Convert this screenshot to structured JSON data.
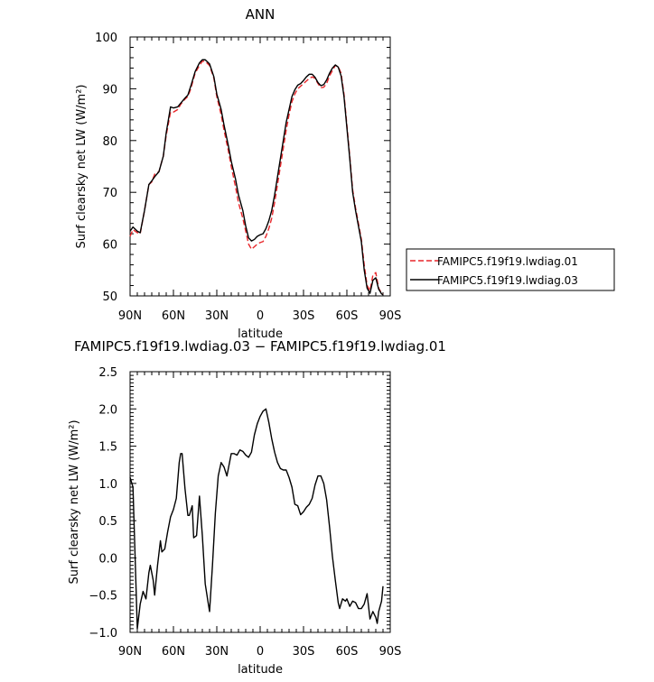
{
  "chart_data": [
    {
      "type": "line",
      "title": "ANN",
      "xlabel": "latitude",
      "ylabel": "Surf clearsky net LW (W/m²)",
      "xlim": [
        -90,
        90
      ],
      "ylim": [
        50,
        100
      ],
      "x_ticks": [
        -90,
        -60,
        -30,
        0,
        30,
        60,
        90
      ],
      "x_tick_labels": [
        "90N",
        "60N",
        "30N",
        "0",
        "30S",
        "60S",
        "90S"
      ],
      "y_ticks": [
        50,
        60,
        70,
        80,
        90,
        100
      ],
      "y_tick_labels": [
        "50",
        "60",
        "70",
        "80",
        "90",
        "100"
      ],
      "legend_position": "right",
      "series": [
        {
          "name": "FAMIPC5.f19f19.lwdiag.01",
          "color": "#e8262a",
          "dash": "dashed",
          "points": [
            [
              -90,
              61.5
            ],
            [
              -88,
              62.8
            ],
            [
              -85,
              62.2
            ],
            [
              -83,
              62
            ],
            [
              -80,
              66.5
            ],
            [
              -77,
              71.5
            ],
            [
              -75,
              72
            ],
            [
              -73,
              73.5
            ],
            [
              -70,
              74
            ],
            [
              -67,
              77
            ],
            [
              -65,
              81
            ],
            [
              -62,
              85.5
            ],
            [
              -60,
              85.5
            ],
            [
              -57,
              86
            ],
            [
              -55,
              87
            ],
            [
              -52,
              88
            ],
            [
              -50,
              88.5
            ],
            [
              -48,
              90
            ],
            [
              -45,
              93
            ],
            [
              -42,
              94.5
            ],
            [
              -40,
              95.3
            ],
            [
              -38,
              95.3
            ],
            [
              -35,
              94.5
            ],
            [
              -32,
              92
            ],
            [
              -30,
              88.5
            ],
            [
              -27,
              85
            ],
            [
              -25,
              82
            ],
            [
              -22,
              78
            ],
            [
              -20,
              75
            ],
            [
              -17,
              71
            ],
            [
              -15,
              68
            ],
            [
              -12,
              65
            ],
            [
              -10,
              62.5
            ],
            [
              -8,
              60
            ],
            [
              -6,
              59
            ],
            [
              -4,
              59.5
            ],
            [
              -2,
              60
            ],
            [
              0,
              60.3
            ],
            [
              2,
              60.5
            ],
            [
              4,
              61.5
            ],
            [
              6,
              63
            ],
            [
              8,
              65
            ],
            [
              10,
              68
            ],
            [
              12,
              71.5
            ],
            [
              14,
              75
            ],
            [
              16,
              78.5
            ],
            [
              18,
              82
            ],
            [
              20,
              85
            ],
            [
              22,
              87.5
            ],
            [
              24,
              89
            ],
            [
              26,
              90
            ],
            [
              28,
              90.5
            ],
            [
              30,
              91
            ],
            [
              32,
              91.5
            ],
            [
              34,
              92
            ],
            [
              36,
              92.3
            ],
            [
              38,
              92
            ],
            [
              40,
              91
            ],
            [
              42,
              90.2
            ],
            [
              44,
              90.3
            ],
            [
              46,
              91
            ],
            [
              48,
              92.5
            ],
            [
              50,
              93.5
            ],
            [
              52,
              94.5
            ],
            [
              54,
              94.3
            ],
            [
              56,
              93
            ],
            [
              58,
              89
            ],
            [
              60,
              83
            ],
            [
              62,
              77
            ],
            [
              64,
              70.5
            ],
            [
              66,
              67
            ],
            [
              68,
              64
            ],
            [
              70,
              61
            ],
            [
              72,
              56
            ],
            [
              74,
              52
            ],
            [
              76,
              51
            ],
            [
              78,
              54
            ],
            [
              80,
              54.5
            ],
            [
              82,
              51.5
            ],
            [
              84,
              50.5
            ],
            [
              85,
              50.3
            ]
          ]
        },
        {
          "name": "FAMIPC5.f19f19.lwdiag.03",
          "color": "#000000",
          "dash": "solid",
          "points": [
            [
              -90,
              62.5
            ],
            [
              -88,
              63.3
            ],
            [
              -85,
              62.5
            ],
            [
              -83,
              62.2
            ],
            [
              -80,
              66.5
            ],
            [
              -77,
              71.5
            ],
            [
              -75,
              72.2
            ],
            [
              -73,
              73
            ],
            [
              -70,
              74
            ],
            [
              -67,
              77
            ],
            [
              -65,
              81.5
            ],
            [
              -62,
              86.5
            ],
            [
              -60,
              86.3
            ],
            [
              -57,
              86.5
            ],
            [
              -55,
              87.2
            ],
            [
              -52,
              88.2
            ],
            [
              -50,
              88.8
            ],
            [
              -48,
              90.5
            ],
            [
              -45,
              93.3
            ],
            [
              -42,
              95
            ],
            [
              -40,
              95.6
            ],
            [
              -38,
              95.6
            ],
            [
              -35,
              94.8
            ],
            [
              -32,
              92.3
            ],
            [
              -30,
              89
            ],
            [
              -27,
              86
            ],
            [
              -25,
              83
            ],
            [
              -22,
              79
            ],
            [
              -20,
              76
            ],
            [
              -17,
              72.5
            ],
            [
              -15,
              69.5
            ],
            [
              -12,
              66.5
            ],
            [
              -10,
              63.5
            ],
            [
              -8,
              61.2
            ],
            [
              -6,
              60.6
            ],
            [
              -4,
              60.9
            ],
            [
              -2,
              61.5
            ],
            [
              0,
              61.8
            ],
            [
              2,
              62
            ],
            [
              4,
              63
            ],
            [
              6,
              64.5
            ],
            [
              8,
              66.5
            ],
            [
              10,
              69.5
            ],
            [
              12,
              73
            ],
            [
              14,
              76.5
            ],
            [
              16,
              80
            ],
            [
              18,
              83.5
            ],
            [
              20,
              86
            ],
            [
              22,
              88.5
            ],
            [
              24,
              89.8
            ],
            [
              26,
              90.7
            ],
            [
              28,
              91
            ],
            [
              30,
              91.6
            ],
            [
              32,
              92.3
            ],
            [
              34,
              92.8
            ],
            [
              36,
              92.8
            ],
            [
              38,
              92.2
            ],
            [
              40,
              91.2
            ],
            [
              42,
              90.6
            ],
            [
              44,
              90.8
            ],
            [
              46,
              91.7
            ],
            [
              48,
              93
            ],
            [
              50,
              94
            ],
            [
              52,
              94.6
            ],
            [
              54,
              94.2
            ],
            [
              56,
              92.5
            ],
            [
              58,
              88.5
            ],
            [
              60,
              82.5
            ],
            [
              62,
              76.5
            ],
            [
              64,
              70
            ],
            [
              66,
              66.5
            ],
            [
              68,
              63.5
            ],
            [
              70,
              60.5
            ],
            [
              72,
              55
            ],
            [
              74,
              51.5
            ],
            [
              76,
              50.5
            ],
            [
              78,
              53
            ],
            [
              80,
              53.5
            ],
            [
              82,
              51.3
            ],
            [
              84,
              50.4
            ],
            [
              85,
              50.2
            ]
          ]
        }
      ]
    },
    {
      "type": "line",
      "title": "FAMIPC5.f19f19.lwdiag.03 − FAMIPC5.f19f19.lwdiag.01",
      "xlabel": "latitude",
      "ylabel": "Surf clearsky net LW (W/m²)",
      "xlim": [
        -90,
        90
      ],
      "ylim": [
        -1.0,
        2.5
      ],
      "x_ticks": [
        -90,
        -60,
        -30,
        0,
        30,
        60,
        90
      ],
      "x_tick_labels": [
        "90N",
        "60N",
        "30N",
        "0",
        "30S",
        "60S",
        "90S"
      ],
      "y_ticks": [
        -1.0,
        -0.5,
        0.0,
        0.5,
        1.0,
        1.5,
        2.0,
        2.5
      ],
      "y_tick_labels": [
        "−1.0",
        "−0.5",
        "0.0",
        "0.5",
        "1.0",
        "1.5",
        "2.0",
        "2.5"
      ],
      "series": [
        {
          "color": "#000000",
          "dash": "solid",
          "points": [
            [
              -90,
              1.08
            ],
            [
              -88,
              0.95
            ],
            [
              -85,
              -0.95
            ],
            [
              -83,
              -0.62
            ],
            [
              -81,
              -0.45
            ],
            [
              -79,
              -0.55
            ],
            [
              -77,
              -0.2
            ],
            [
              -76,
              -0.1
            ],
            [
              -74,
              -0.3
            ],
            [
              -73,
              -0.5
            ],
            [
              -71,
              -0.1
            ],
            [
              -69,
              0.23
            ],
            [
              -68,
              0.08
            ],
            [
              -66,
              0.12
            ],
            [
              -64,
              0.35
            ],
            [
              -62,
              0.55
            ],
            [
              -60,
              0.65
            ],
            [
              -58,
              0.8
            ],
            [
              -56,
              1.28
            ],
            [
              -55,
              1.4
            ],
            [
              -54,
              1.4
            ],
            [
              -52,
              0.93
            ],
            [
              -50,
              0.57
            ],
            [
              -49,
              0.57
            ],
            [
              -47,
              0.7
            ],
            [
              -46,
              0.27
            ],
            [
              -44,
              0.3
            ],
            [
              -42,
              0.83
            ],
            [
              -40,
              0.3
            ],
            [
              -38,
              -0.35
            ],
            [
              -36,
              -0.6
            ],
            [
              -35,
              -0.72
            ],
            [
              -33,
              -0.1
            ],
            [
              -31,
              0.6
            ],
            [
              -29,
              1.1
            ],
            [
              -27,
              1.28
            ],
            [
              -25,
              1.22
            ],
            [
              -23,
              1.1
            ],
            [
              -22,
              1.2
            ],
            [
              -20,
              1.4
            ],
            [
              -18,
              1.4
            ],
            [
              -16,
              1.38
            ],
            [
              -14,
              1.45
            ],
            [
              -12,
              1.43
            ],
            [
              -10,
              1.38
            ],
            [
              -8,
              1.35
            ],
            [
              -6,
              1.42
            ],
            [
              -4,
              1.65
            ],
            [
              -2,
              1.8
            ],
            [
              0,
              1.9
            ],
            [
              2,
              1.97
            ],
            [
              4,
              2.0
            ],
            [
              6,
              1.82
            ],
            [
              8,
              1.6
            ],
            [
              10,
              1.42
            ],
            [
              12,
              1.28
            ],
            [
              14,
              1.2
            ],
            [
              16,
              1.18
            ],
            [
              18,
              1.18
            ],
            [
              20,
              1.08
            ],
            [
              22,
              0.95
            ],
            [
              24,
              0.72
            ],
            [
              26,
              0.7
            ],
            [
              28,
              0.58
            ],
            [
              30,
              0.62
            ],
            [
              32,
              0.68
            ],
            [
              34,
              0.72
            ],
            [
              36,
              0.8
            ],
            [
              38,
              0.98
            ],
            [
              40,
              1.1
            ],
            [
              42,
              1.1
            ],
            [
              44,
              1.0
            ],
            [
              46,
              0.78
            ],
            [
              48,
              0.42
            ],
            [
              50,
              0.02
            ],
            [
              52,
              -0.3
            ],
            [
              54,
              -0.6
            ],
            [
              55,
              -0.68
            ],
            [
              57,
              -0.55
            ],
            [
              59,
              -0.58
            ],
            [
              60,
              -0.55
            ],
            [
              62,
              -0.65
            ],
            [
              64,
              -0.58
            ],
            [
              66,
              -0.6
            ],
            [
              68,
              -0.68
            ],
            [
              70,
              -0.68
            ],
            [
              72,
              -0.62
            ],
            [
              74,
              -0.48
            ],
            [
              76,
              -0.82
            ],
            [
              78,
              -0.72
            ],
            [
              80,
              -0.8
            ],
            [
              81,
              -0.88
            ],
            [
              82,
              -0.72
            ],
            [
              84,
              -0.58
            ],
            [
              85,
              -0.38
            ]
          ]
        }
      ]
    }
  ]
}
